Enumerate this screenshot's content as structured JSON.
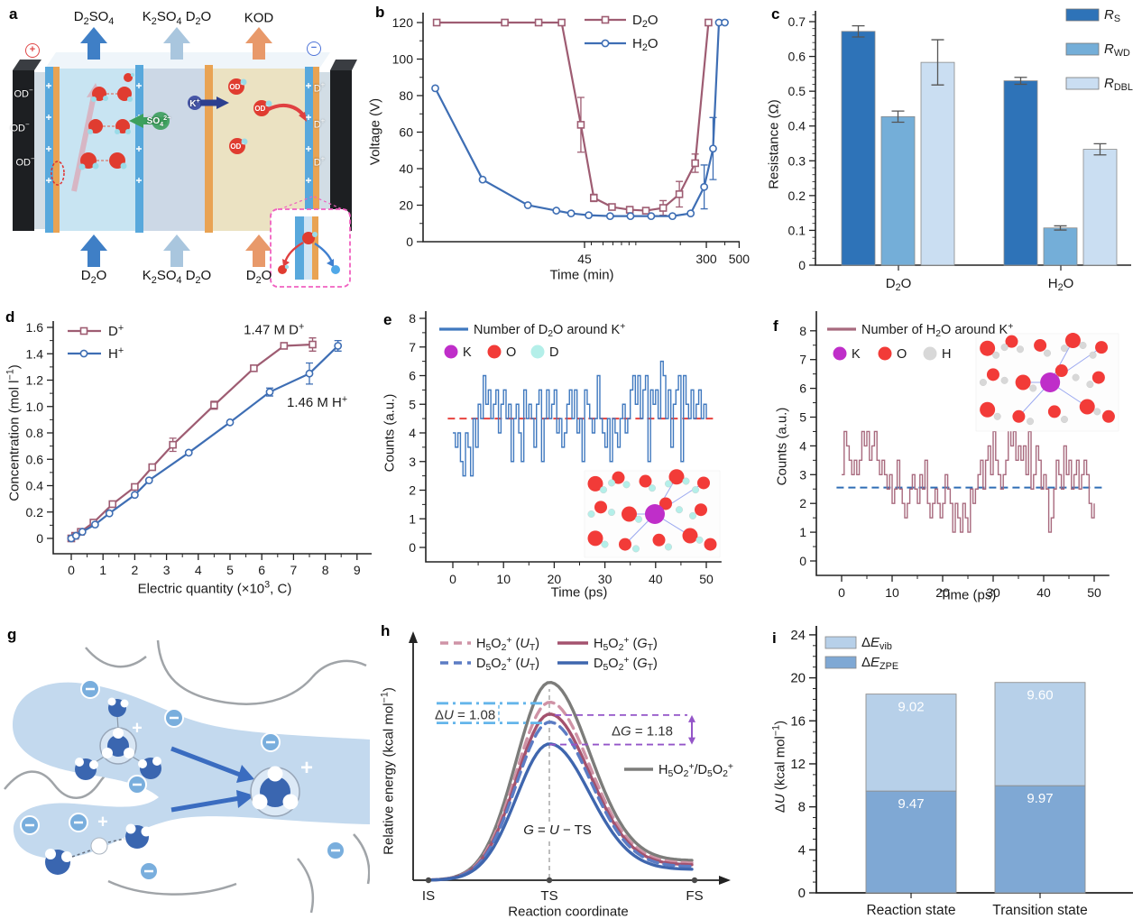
{
  "figure": {
    "background": "#ffffff",
    "panel_labels": {
      "a": "a",
      "b": "b",
      "c": "c",
      "d": "d",
      "e": "e",
      "f": "f",
      "g": "g",
      "h": "h",
      "i": "i"
    }
  },
  "panel_a": {
    "anode_symbol": "+",
    "cathode_symbol": "−",
    "top_labels": [
      "D_{2}SO_{4}",
      "K_{2}SO_{4} D_{2}O",
      "KOD"
    ],
    "bottom_labels": [
      "D_{2}O",
      "K_{2}SO_{4} D_{2}O",
      "D_{2}O"
    ],
    "od_label": "OD^{−}",
    "d_label": "D^{+}",
    "k_label": "K^{+}",
    "sulfate_label": "SO_{4}^{2−}"
  },
  "panel_g": {
    "plus": "+"
  },
  "axis_titles": {
    "b_x": "Time (min)",
    "b_y": "Voltage (V)",
    "c_y": "Resistance (Ω)",
    "d_x": "Electric quantity (×10^{3}, C)",
    "d_y": "Concentration (mol l^{−1})",
    "e_x": "Time (ps)",
    "e_y": "Counts (a.u.)",
    "f_x": "Time (ps)",
    "f_y": "Counts (a.u.)",
    "h_x": "Reaction coordinate",
    "h_y": "Relative energy (kcal mol^{−1})",
    "i_y": "Δ*U* (kcal mol^{−1})"
  },
  "chart_data": {
    "b": {
      "type": "line",
      "x_scale": "log",
      "xlabel": "Time (min)",
      "ylabel": "Voltage (V)",
      "xlim": [
        3.6,
        560
      ],
      "ylim": [
        0,
        130
      ],
      "xticks": [
        45,
        300,
        500
      ],
      "xminor": [
        50,
        60,
        70,
        80,
        90,
        100,
        200,
        400
      ],
      "yticks": [
        0,
        20,
        40,
        60,
        80,
        100,
        120
      ],
      "legend_position": "top-center",
      "series": [
        {
          "name": "D_{2}O",
          "color": "#9e5c72",
          "marker": "square",
          "points": [
            [
              4.5,
              120
            ],
            [
              13,
              120
            ],
            [
              22,
              120
            ],
            [
              31.5,
              120
            ],
            [
              42.5,
              64,
              15
            ],
            [
              52,
              24,
              2
            ],
            [
              69,
              19,
              1
            ],
            [
              91,
              17.5,
              1
            ],
            [
              117,
              17,
              1.5
            ],
            [
              153,
              18.5,
              4
            ],
            [
              197,
              26,
              7
            ],
            [
              252,
              43,
              5
            ],
            [
              310,
              120
            ]
          ]
        },
        {
          "name": "H_{2}O",
          "color": "#3e6eb4",
          "marker": "circle",
          "points": [
            [
              4.4,
              84
            ],
            [
              9.2,
              34
            ],
            [
              18.6,
              20
            ],
            [
              29,
              17
            ],
            [
              36.5,
              15.5
            ],
            [
              48,
              14.5
            ],
            [
              67,
              14
            ],
            [
              92,
              14
            ],
            [
              127,
              14
            ],
            [
              177,
              14
            ],
            [
              235,
              15.5
            ],
            [
              290,
              30,
              12
            ],
            [
              333,
              51,
              17
            ],
            [
              365,
              120
            ],
            [
              400,
              120
            ]
          ]
        }
      ]
    },
    "c": {
      "type": "bar",
      "ylabel": "Resistance (Ω)",
      "ylim": [
        0,
        0.75
      ],
      "categories": [
        "D_{2}O",
        "H_{2}O"
      ],
      "yticks": [
        0,
        0.1,
        0.2,
        0.3,
        0.4,
        0.5,
        0.6,
        0.7
      ],
      "legend_position": "top-right",
      "series": [
        {
          "name": "*R*_{S}",
          "color": "#2e73b8",
          "values": [
            0.672,
            0.53
          ],
          "errors": [
            0.016,
            0.01
          ]
        },
        {
          "name": "*R*_{WD}",
          "color": "#74aed8",
          "values": [
            0.427,
            0.107
          ],
          "errors": [
            0.016,
            0.006
          ]
        },
        {
          "name": "*R*_{DBL}",
          "color": "#cadef2",
          "values": [
            0.583,
            0.333
          ],
          "errors": [
            0.065,
            0.016
          ]
        }
      ]
    },
    "d": {
      "type": "line",
      "xlabel": "Electric quantity (×10³, C)",
      "ylabel": "Concentration (mol l⁻¹)",
      "xlim": [
        -0.4,
        9
      ],
      "ylim": [
        -0.1,
        1.65
      ],
      "xticks": [
        0,
        1,
        2,
        3,
        4,
        5,
        6,
        7,
        8,
        9
      ],
      "yticks": [
        0,
        0.2,
        0.4,
        0.6,
        0.8,
        1.0,
        1.2,
        1.4,
        1.6
      ],
      "legend_position": "top-left",
      "series": [
        {
          "name": "D^{+}",
          "color": "#9e5c72",
          "marker": "square",
          "points": [
            [
              0,
              0
            ],
            [
              0.12,
              0.02
            ],
            [
              0.3,
              0.05
            ],
            [
              0.7,
              0.12
            ],
            [
              1.3,
              0.26
            ],
            [
              2,
              0.39
            ],
            [
              2.55,
              0.54
            ],
            [
              3.2,
              0.71,
              0.05
            ],
            [
              4.5,
              1.01,
              0.03
            ],
            [
              5.75,
              1.29
            ],
            [
              6.7,
              1.46
            ],
            [
              7.6,
              1.47,
              0.05
            ]
          ]
        },
        {
          "name": "H^{+}",
          "color": "#3e6eb4",
          "marker": "circle",
          "points": [
            [
              0,
              0
            ],
            [
              0.15,
              0.02
            ],
            [
              0.35,
              0.05
            ],
            [
              0.75,
              0.105
            ],
            [
              1.2,
              0.19
            ],
            [
              2,
              0.33
            ],
            [
              2.45,
              0.44
            ],
            [
              3.7,
              0.65
            ],
            [
              5,
              0.88
            ],
            [
              6.25,
              1.11,
              0.03
            ],
            [
              7.5,
              1.25,
              0.08
            ],
            [
              8.4,
              1.46,
              0.04
            ]
          ]
        }
      ],
      "annotations": [
        {
          "text": "1.47 M D^{+}",
          "x": 5.43,
          "y": 1.55
        },
        {
          "text": "1.46 M H^{+}",
          "x": 6.79,
          "y": 1.0
        }
      ]
    },
    "e": {
      "type": "step",
      "xlabel": "Time (ps)",
      "ylabel": "Counts (a.u.)",
      "legend": "Number of D_{2}O around K^{+}",
      "line_color": "#4079bf",
      "mean_line": {
        "value": 4.5,
        "color": "#e8433f",
        "style": "dashed"
      },
      "atoms": [
        {
          "label": "K",
          "color": "#bf2ec9"
        },
        {
          "label": "O",
          "color": "#f23b38"
        },
        {
          "label": "D",
          "color": "#b4efe9"
        }
      ],
      "xlim": [
        -2,
        53
      ],
      "ylim": [
        0,
        8
      ],
      "xticks": [
        0,
        10,
        20,
        30,
        40,
        50
      ],
      "yticks": [
        0,
        1,
        2,
        3,
        4,
        5,
        6,
        7,
        8
      ],
      "t_start": 0,
      "t_step": 0.5,
      "values": [
        4,
        3.5,
        4,
        3,
        2.5,
        4,
        3.5,
        2.5,
        4.5,
        3.5,
        5,
        4.5,
        6,
        5,
        5.5,
        4.5,
        5,
        5.5,
        4,
        5,
        5.5,
        4.5,
        5,
        3,
        4.5,
        5,
        4,
        3,
        5.5,
        4.5,
        5,
        4.5,
        3.5,
        5,
        5.5,
        3,
        4.5,
        5.5,
        4.5,
        5,
        5.5,
        4,
        4.5,
        3.5,
        4,
        5,
        5.5,
        4.5,
        5.5,
        4,
        4.5,
        3,
        5.5,
        5,
        4.5,
        4,
        4.5,
        6,
        4.5,
        4,
        3.5,
        4.5,
        3,
        4.5,
        4,
        3.5,
        4.5,
        5,
        4,
        4.5,
        5.5,
        6,
        5,
        6,
        4.5,
        5.5,
        6,
        3,
        5.5,
        5,
        5.5,
        4.5,
        6.5,
        6,
        4.5,
        5.5,
        3.5,
        5,
        5.5,
        6,
        3,
        6,
        5,
        4.5,
        5.5,
        4.5,
        5,
        5.5,
        4.5,
        5,
        4.5
      ]
    },
    "f": {
      "type": "step",
      "xlabel": "Time (ps)",
      "ylabel": "Counts (a.u.)",
      "legend": "Number of H_{2}O around K^{+}",
      "line_color": "#a86a7e",
      "mean_line": {
        "value": 2.55,
        "color": "#2f6db5",
        "style": "dashed"
      },
      "atoms": [
        {
          "label": "K",
          "color": "#bf2ec9"
        },
        {
          "label": "O",
          "color": "#f23b38"
        },
        {
          "label": "H",
          "color": "#d8d8d8"
        }
      ],
      "xlim": [
        -2,
        53
      ],
      "ylim": [
        0,
        8
      ],
      "xticks": [
        0,
        10,
        20,
        30,
        40,
        50
      ],
      "yticks": [
        0,
        1,
        2,
        3,
        4,
        5,
        6,
        7,
        8
      ],
      "t_start": 0,
      "t_step": 0.5,
      "values": [
        3,
        4.5,
        4,
        3.5,
        3,
        3.5,
        3,
        3.5,
        4.5,
        4,
        4.5,
        3.5,
        4,
        4.5,
        3.5,
        3,
        3.5,
        3,
        2.5,
        3,
        2,
        2.5,
        3.5,
        2.5,
        2,
        1.5,
        2,
        2.5,
        3,
        2.5,
        2,
        3,
        2.5,
        3.5,
        2,
        1.5,
        2,
        2.5,
        2,
        1.5,
        2,
        3,
        2.5,
        2,
        1,
        2,
        1.5,
        1,
        2,
        1.5,
        1,
        2.5,
        2,
        2.5,
        3,
        3.5,
        2.5,
        3.5,
        4,
        3,
        4.5,
        3.5,
        3,
        2.5,
        3,
        3.5,
        5,
        4,
        4.5,
        3.5,
        4,
        3.5,
        4,
        3,
        4.5,
        2.5,
        3,
        4,
        3.5,
        2.5,
        3,
        2.5,
        1,
        1.5,
        2.5,
        3.5,
        3,
        2.5,
        4,
        3,
        3.5,
        2.5,
        3,
        3.5,
        2.5,
        3,
        3.5,
        3,
        2,
        1.5,
        2
      ]
    },
    "h": {
      "type": "energy",
      "xlabel": "Reaction coordinate",
      "ylabel": "Relative energy (kcal mol⁻¹)",
      "xticks": [
        "IS",
        "TS",
        "FS"
      ],
      "curves": [
        {
          "name": "H_{5}O_{2}^{+} (*U*_{T})",
          "color": "#cf93a6",
          "dash": true,
          "peak": 0.9,
          "end": 0.087
        },
        {
          "name": "H_{5}O_{2}^{+} (*G*_{T})",
          "color": "#a4526e",
          "dash": false,
          "peak": 0.84,
          "end": 0.078
        },
        {
          "name": "D_{5}O_{2}^{+} (*U*_{T})",
          "color": "#5c7cc4",
          "dash": true,
          "peak": 0.8,
          "end": 0.069
        },
        {
          "name": "D_{5}O_{2}^{+} (*G*_{T})",
          "color": "#3f66ae",
          "dash": false,
          "peak": 0.69,
          "end": 0.055
        },
        {
          "name": "H_{5}O_{2}^{+}/D_{5}O_{2}^{+}",
          "color": "#7c7c7a",
          "dash": false,
          "peak": 1.0,
          "end": 0.1
        }
      ],
      "annotations": {
        "du": "Δ*U* = 1.08",
        "dg": "Δ*G* = 1.18",
        "eq": "*G* = *U* − TS"
      },
      "du_color": "#64b5ea",
      "dg_color": "#9455c8"
    },
    "i": {
      "type": "stacked_bar",
      "ylabel": "ΔU (kcal mol⁻¹)",
      "ylim": [
        0,
        24
      ],
      "categories": [
        "Reaction state",
        "Transition state"
      ],
      "yticks": [
        0,
        4,
        8,
        12,
        16,
        20,
        24
      ],
      "legend_position": "top-left",
      "series": [
        {
          "name": "Δ*E*_{vib}",
          "color": "#b7d0e9",
          "values": [
            9.02,
            9.6
          ]
        },
        {
          "name": "Δ*E*_{ZPE}",
          "color": "#7fa8d4",
          "values": [
            9.47,
            9.97
          ]
        }
      ],
      "value_labels": {
        "vib": [
          "9.02",
          "9.60"
        ],
        "zpe": [
          "9.47",
          "9.97"
        ]
      }
    }
  }
}
